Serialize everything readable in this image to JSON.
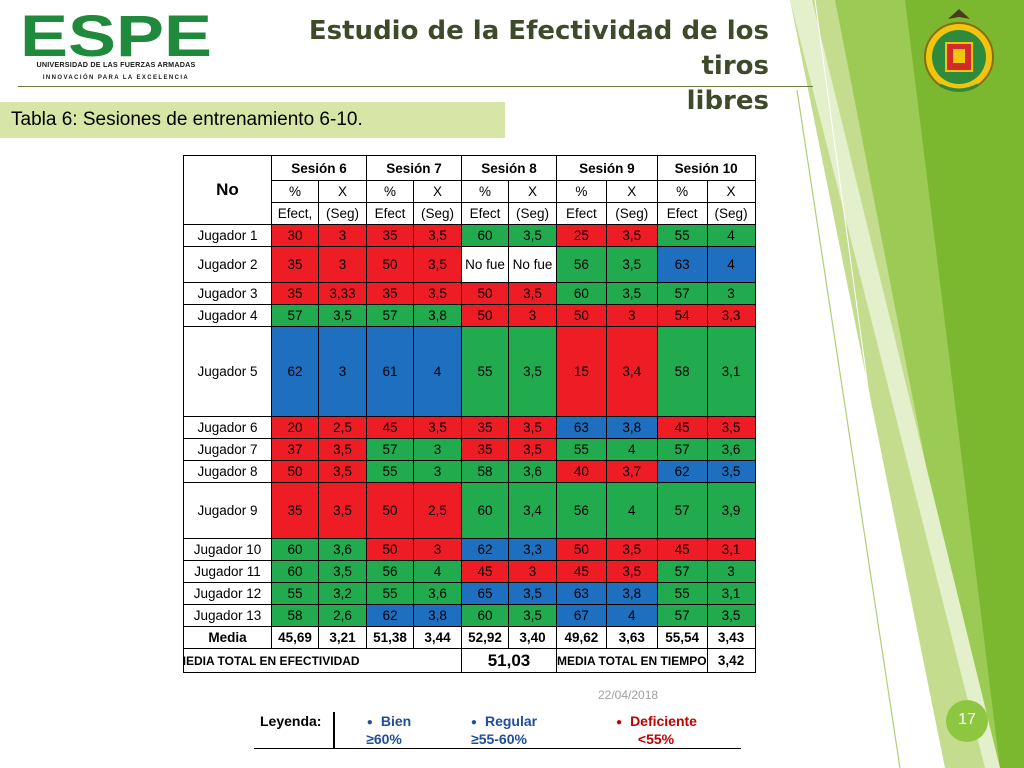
{
  "header": {
    "title_line1": "Estudio de la Efectividad de los tiros",
    "title_line2": "libres",
    "logo_text": "ESPE",
    "university": "UNIVERSIDAD DE LAS FUERZAS ARMADAS",
    "tagline": "INNOVACIÓN PARA LA EXCELENCIA",
    "brand_color": "#1f8a3c"
  },
  "caption": "Tabla 6: Sesiones de entrenamiento 6-10.",
  "table": {
    "corner": "No",
    "sessions": [
      "Sesión 6",
      "Sesión 7",
      "Sesión 8",
      "Sesión 9",
      "Sesión 10"
    ],
    "sub1": [
      "%",
      "X",
      "%",
      "X",
      "%",
      "X",
      "%",
      "X",
      "%",
      "X"
    ],
    "sub2": [
      "Efect,",
      "(Seg)",
      "Efect",
      "(Seg)",
      "Efect",
      "(Seg)",
      "Efect",
      "(Seg)",
      "Efect",
      "(Seg)"
    ],
    "rows": [
      {
        "name": "Jugador 1",
        "cells": [
          "30",
          "3",
          "35",
          "3,5",
          "60",
          "3,5",
          "25",
          "3,5",
          "55",
          "4"
        ],
        "status": [
          "r",
          "r",
          "g",
          "r",
          "g"
        ]
      },
      {
        "name": "Jugador 2",
        "cells": [
          "35",
          "3",
          "50",
          "3,5",
          "No fue",
          "No fue",
          "56",
          "3,5",
          "63",
          "4"
        ],
        "status": [
          "r",
          "r",
          "",
          "g",
          "b"
        ]
      },
      {
        "name": "Jugador 3",
        "cells": [
          "35",
          "3,33",
          "35",
          "3,5",
          "50",
          "3,5",
          "60",
          "3,5",
          "57",
          "3"
        ],
        "status": [
          "r",
          "r",
          "r",
          "g",
          "g"
        ]
      },
      {
        "name": "Jugador 4",
        "cells": [
          "57",
          "3,5",
          "57",
          "3,8",
          "50",
          "3",
          "50",
          "3",
          "54",
          "3,3"
        ],
        "status": [
          "g",
          "g",
          "r",
          "r",
          "r"
        ]
      },
      {
        "name": "Jugador 5",
        "cells": [
          "62",
          "3",
          "61",
          "4",
          "55",
          "3,5",
          "15",
          "3,4",
          "58",
          "3,1"
        ],
        "status": [
          "b",
          "b",
          "g",
          "r",
          "g"
        ]
      },
      {
        "name": "Jugador 6",
        "cells": [
          "20",
          "2,5",
          "45",
          "3,5",
          "35",
          "3,5",
          "63",
          "3,8",
          "45",
          "3,5"
        ],
        "status": [
          "r",
          "r",
          "r",
          "b",
          "r"
        ]
      },
      {
        "name": "Jugador 7",
        "cells": [
          "37",
          "3,5",
          "57",
          "3",
          "35",
          "3,5",
          "55",
          "4",
          "57",
          "3,6"
        ],
        "status": [
          "r",
          "g",
          "r",
          "g",
          "g"
        ]
      },
      {
        "name": "Jugador 8",
        "cells": [
          "50",
          "3,5",
          "55",
          "3",
          "58",
          "3,6",
          "40",
          "3,7",
          "62",
          "3,5"
        ],
        "status": [
          "r",
          "g",
          "g",
          "r",
          "b"
        ]
      },
      {
        "name": "Jugador 9",
        "cells": [
          "35",
          "3,5",
          "50",
          "2,5",
          "60",
          "3,4",
          "56",
          "4",
          "57",
          "3,9"
        ],
        "status": [
          "r",
          "r",
          "g",
          "g",
          "g"
        ]
      },
      {
        "name": "Jugador 10",
        "cells": [
          "60",
          "3,6",
          "50",
          "3",
          "62",
          "3,3",
          "50",
          "3,5",
          "45",
          "3,1"
        ],
        "status": [
          "g",
          "r",
          "b",
          "r",
          "r"
        ]
      },
      {
        "name": "Jugador 11",
        "cells": [
          "60",
          "3,5",
          "56",
          "4",
          "45",
          "3",
          "45",
          "3,5",
          "57",
          "3"
        ],
        "status": [
          "g",
          "g",
          "r",
          "r",
          "g"
        ]
      },
      {
        "name": "Jugador 12",
        "cells": [
          "55",
          "3,2",
          "55",
          "3,6",
          "65",
          "3,5",
          "63",
          "3,8",
          "55",
          "3,1"
        ],
        "status": [
          "g",
          "g",
          "b",
          "b",
          "g"
        ]
      },
      {
        "name": "Jugador 13",
        "cells": [
          "58",
          "2,6",
          "62",
          "3,8",
          "60",
          "3,5",
          "67",
          "4",
          "57",
          "3,5"
        ],
        "status": [
          "g",
          "b",
          "g",
          "b",
          "g"
        ]
      }
    ],
    "media_label": "Media",
    "media": [
      "45,69",
      "3,21",
      "51,38",
      "3,44",
      "52,92",
      "3,40",
      "49,62",
      "3,63",
      "55,54",
      "3,43"
    ],
    "total_eff_label": "MEDIA TOTAL EN EFECTIVIDAD",
    "total_eff_value": "51,03",
    "total_time_label": "MEDIA TOTAL EN TIEMPO",
    "total_time_value": "3,42"
  },
  "status_colors": {
    "g": "#21ab4e",
    "r": "#ee1c24",
    "b": "#1f6fc1"
  },
  "footer": {
    "date": "22/04/2018",
    "page_number": "17"
  },
  "legend": {
    "title": "Leyenda:",
    "items": [
      {
        "label": "Bien",
        "range": "≥60%"
      },
      {
        "label": "Regular",
        "range": "≥55-60%"
      },
      {
        "label": "Deficiente",
        "range": "<55%"
      }
    ]
  }
}
